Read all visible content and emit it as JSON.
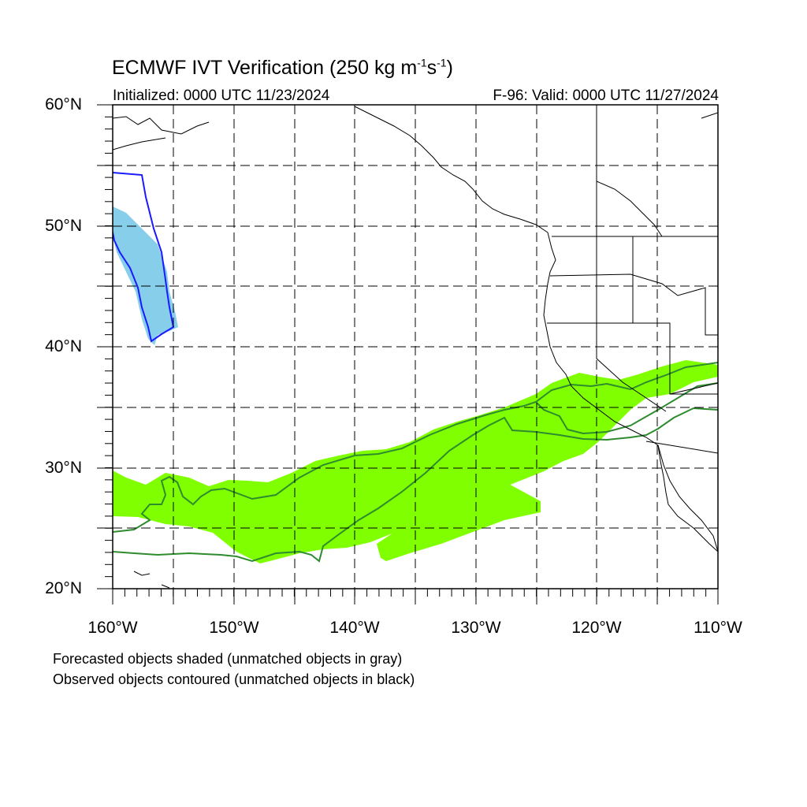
{
  "title": {
    "main": "ECMWF IVT Verification (250 kg m",
    "sup1": "-1",
    "mid": "s",
    "sup2": "-1",
    "end": ")"
  },
  "initialized": "Initialized: 0000 UTC 11/23/2024",
  "valid": "F-96: Valid: 0000 UTC 11/27/2024",
  "lat_labels": [
    "60°N",
    "50°N",
    "40°N",
    "30°N",
    "20°N"
  ],
  "lon_labels": [
    "160°W",
    "150°W",
    "140°W",
    "130°W",
    "120°W",
    "110°W"
  ],
  "legend_notes": [
    "Forecasted objects shaded (unmatched objects in gray)",
    "Observed objects contoured (unmatched objects in black)"
  ],
  "colors": {
    "forecast_main": "#80ff00",
    "forecast_north": "#87ceeb",
    "observed_main": "#2e8b2e",
    "observed_north": "#1a1aff",
    "coast": "#000000"
  }
}
